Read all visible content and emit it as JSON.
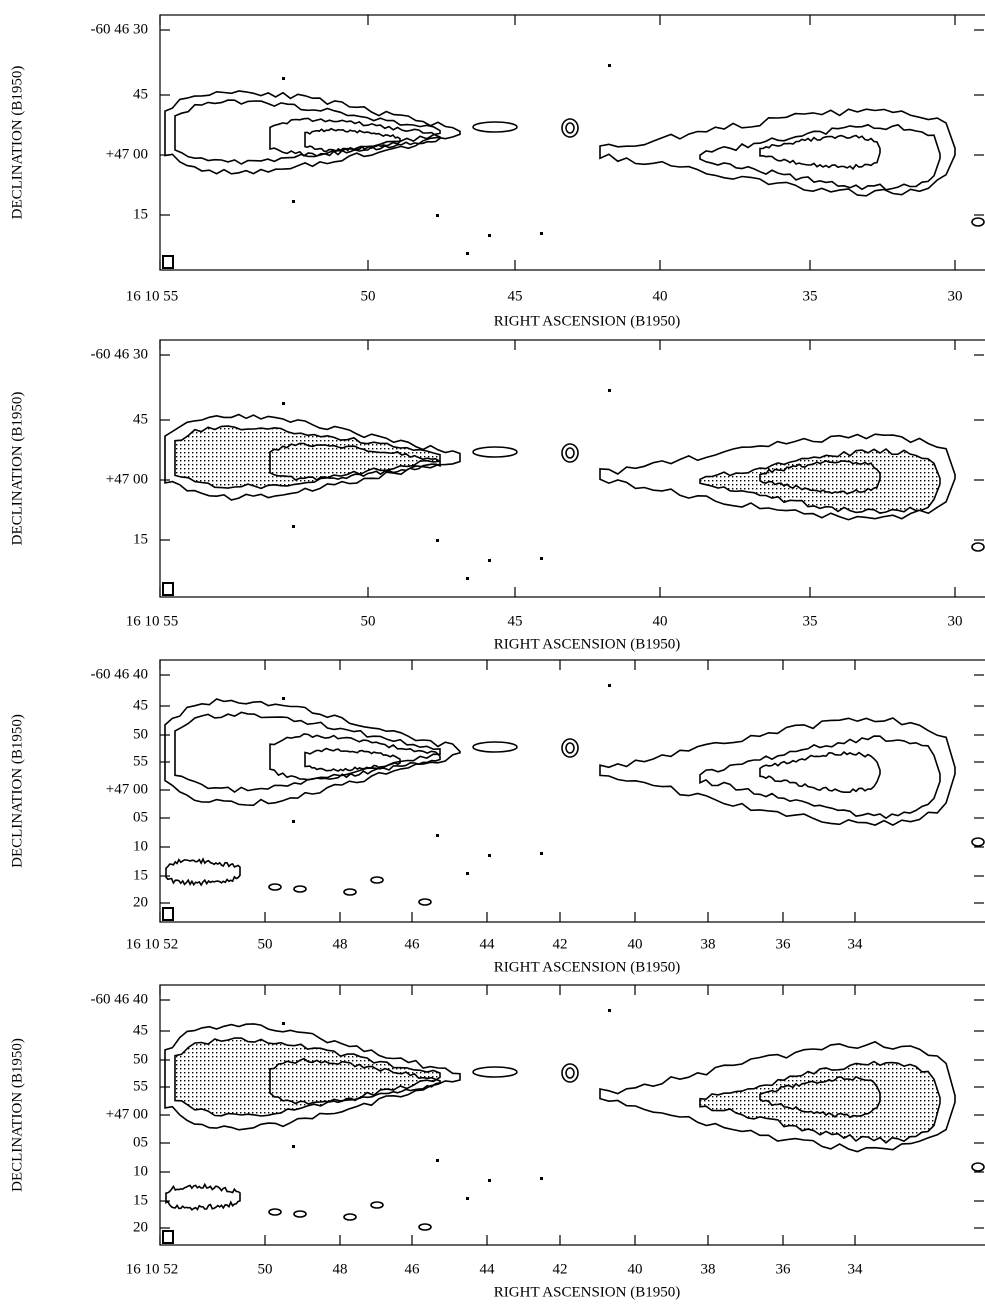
{
  "panels": [
    {
      "y_label": "DECLINATION (B1950)",
      "x_label": "RIGHT ASCENSION (B1950)",
      "y_ticks": [
        "-60 46 30",
        "45",
        "+47 00",
        "15"
      ],
      "x_ticks": [
        "16 10 55",
        "50",
        "45",
        "40",
        "35",
        "30"
      ]
    },
    {
      "y_label": "DECLINATION (B1950)",
      "x_label": "RIGHT ASCENSION (B1950)",
      "y_ticks": [
        "-60 46 30",
        "45",
        "+47 00",
        "15"
      ],
      "x_ticks": [
        "16 10 55",
        "50",
        "45",
        "40",
        "35",
        "30"
      ]
    },
    {
      "y_label": "DECLINATION (B1950)",
      "x_label": "RIGHT ASCENSION (B1950)",
      "y_ticks": [
        "-60 46 40",
        "45",
        "50",
        "55",
        "+47 00",
        "05",
        "10",
        "15",
        "20"
      ],
      "x_ticks": [
        "16 10 52",
        "50",
        "48",
        "46",
        "44",
        "42",
        "40",
        "38",
        "36",
        "34"
      ]
    },
    {
      "y_label": "DECLINATION (B1950)",
      "x_label": "RIGHT ASCENSION (B1950)",
      "y_ticks": [
        "-60 46 40",
        "45",
        "50",
        "55",
        "+47 00",
        "05",
        "10",
        "15",
        "20"
      ],
      "x_ticks": [
        "16 10 52",
        "50",
        "48",
        "46",
        "44",
        "42",
        "40",
        "38",
        "36",
        "34"
      ]
    }
  ]
}
